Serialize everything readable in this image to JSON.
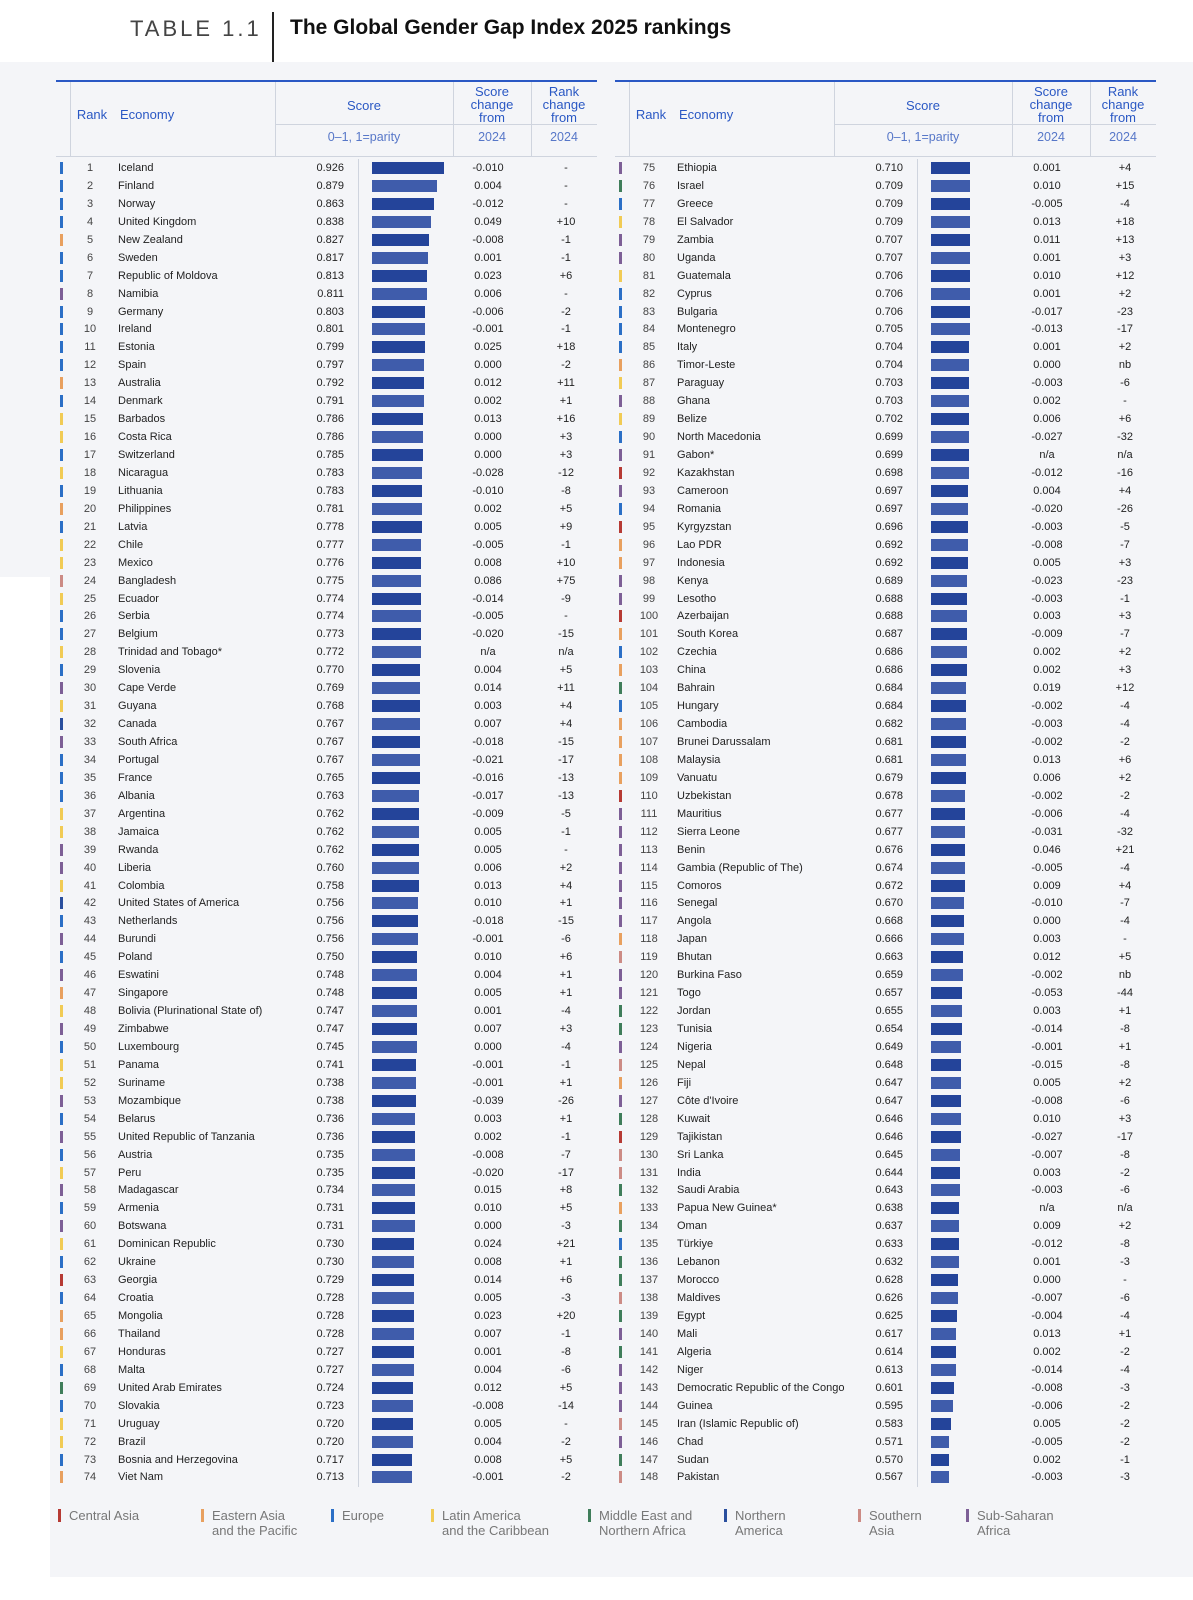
{
  "header": {
    "tag": "TABLE 1.1",
    "title": "The Global Gender Gap Index 2025 rankings"
  },
  "columns": {
    "rank": "Rank",
    "economy": "Economy",
    "score": "Score",
    "score_sub": "0–1, 1=parity",
    "score_change_l1": "Score",
    "score_change_l2": "change",
    "score_change_l3": "from",
    "score_change_sub": "2024",
    "rank_change_l1": "Rank",
    "rank_change_l2": "change",
    "rank_change_l3": "from",
    "rank_change_sub": "2024"
  },
  "region_colors": {
    "CA": "#b63a34",
    "EA": "#e8a05f",
    "EU": "#2b6fc6",
    "LA": "#f1cb55",
    "ME": "#3f7d5a",
    "NA": "#2a4f9e",
    "SA": "#cc8b85",
    "SS": "#7d5f96"
  },
  "bar_colors": {
    "bar": "#24449a",
    "bar_light": "#3f5cab"
  },
  "legend": [
    {
      "region": "CA",
      "line1": "Central Asia",
      "line2": ""
    },
    {
      "region": "EA",
      "line1": "Eastern Asia",
      "line2": "and the Pacific"
    },
    {
      "region": "EU",
      "line1": "Europe",
      "line2": ""
    },
    {
      "region": "LA",
      "line1": "Latin America",
      "line2": "and the Caribbean"
    },
    {
      "region": "ME",
      "line1": "Middle East and",
      "line2": "Northern Africa"
    },
    {
      "region": "NA",
      "line1": "Northern",
      "line2": "America"
    },
    {
      "region": "SA",
      "line1": "Southern",
      "line2": "Asia"
    },
    {
      "region": "SS",
      "line1": "Sub-Saharan",
      "line2": "Africa"
    }
  ],
  "rows": [
    [
      "1",
      "Iceland",
      "0.926",
      "-0.010",
      "-",
      "EU"
    ],
    [
      "2",
      "Finland",
      "0.879",
      "0.004",
      "-",
      "EU"
    ],
    [
      "3",
      "Norway",
      "0.863",
      "-0.012",
      "-",
      "EU"
    ],
    [
      "4",
      "United Kingdom",
      "0.838",
      "0.049",
      "+10",
      "EU"
    ],
    [
      "5",
      "New Zealand",
      "0.827",
      "-0.008",
      "-1",
      "EA"
    ],
    [
      "6",
      "Sweden",
      "0.817",
      "0.001",
      "-1",
      "EU"
    ],
    [
      "7",
      "Republic of Moldova",
      "0.813",
      "0.023",
      "+6",
      "EU"
    ],
    [
      "8",
      "Namibia",
      "0.811",
      "0.006",
      "-",
      "SS"
    ],
    [
      "9",
      "Germany",
      "0.803",
      "-0.006",
      "-2",
      "EU"
    ],
    [
      "10",
      "Ireland",
      "0.801",
      "-0.001",
      "-1",
      "EU"
    ],
    [
      "11",
      "Estonia",
      "0.799",
      "0.025",
      "+18",
      "EU"
    ],
    [
      "12",
      "Spain",
      "0.797",
      "0.000",
      "-2",
      "EU"
    ],
    [
      "13",
      "Australia",
      "0.792",
      "0.012",
      "+11",
      "EA"
    ],
    [
      "14",
      "Denmark",
      "0.791",
      "0.002",
      "+1",
      "EU"
    ],
    [
      "15",
      "Barbados",
      "0.786",
      "0.013",
      "+16",
      "LA"
    ],
    [
      "16",
      "Costa Rica",
      "0.786",
      "0.000",
      "+3",
      "LA"
    ],
    [
      "17",
      "Switzerland",
      "0.785",
      "0.000",
      "+3",
      "EU"
    ],
    [
      "18",
      "Nicaragua",
      "0.783",
      "-0.028",
      "-12",
      "LA"
    ],
    [
      "19",
      "Lithuania",
      "0.783",
      "-0.010",
      "-8",
      "EU"
    ],
    [
      "20",
      "Philippines",
      "0.781",
      "0.002",
      "+5",
      "EA"
    ],
    [
      "21",
      "Latvia",
      "0.778",
      "0.005",
      "+9",
      "EU"
    ],
    [
      "22",
      "Chile",
      "0.777",
      "-0.005",
      "-1",
      "LA"
    ],
    [
      "23",
      "Mexico",
      "0.776",
      "0.008",
      "+10",
      "LA"
    ],
    [
      "24",
      "Bangladesh",
      "0.775",
      "0.086",
      "+75",
      "SA"
    ],
    [
      "25",
      "Ecuador",
      "0.774",
      "-0.014",
      "-9",
      "LA"
    ],
    [
      "26",
      "Serbia",
      "0.774",
      "-0.005",
      "-",
      "EU"
    ],
    [
      "27",
      "Belgium",
      "0.773",
      "-0.020",
      "-15",
      "EU"
    ],
    [
      "28",
      "Trinidad and Tobago*",
      "0.772",
      "n/a",
      "n/a",
      "LA"
    ],
    [
      "29",
      "Slovenia",
      "0.770",
      "0.004",
      "+5",
      "EU"
    ],
    [
      "30",
      "Cape Verde",
      "0.769",
      "0.014",
      "+11",
      "SS"
    ],
    [
      "31",
      "Guyana",
      "0.768",
      "0.003",
      "+4",
      "LA"
    ],
    [
      "32",
      "Canada",
      "0.767",
      "0.007",
      "+4",
      "NA"
    ],
    [
      "33",
      "South Africa",
      "0.767",
      "-0.018",
      "-15",
      "SS"
    ],
    [
      "34",
      "Portugal",
      "0.767",
      "-0.021",
      "-17",
      "EU"
    ],
    [
      "35",
      "France",
      "0.765",
      "-0.016",
      "-13",
      "EU"
    ],
    [
      "36",
      "Albania",
      "0.763",
      "-0.017",
      "-13",
      "EU"
    ],
    [
      "37",
      "Argentina",
      "0.762",
      "-0.009",
      "-5",
      "LA"
    ],
    [
      "38",
      "Jamaica",
      "0.762",
      "0.005",
      "-1",
      "LA"
    ],
    [
      "39",
      "Rwanda",
      "0.762",
      "0.005",
      "-",
      "SS"
    ],
    [
      "40",
      "Liberia",
      "0.760",
      "0.006",
      "+2",
      "SS"
    ],
    [
      "41",
      "Colombia",
      "0.758",
      "0.013",
      "+4",
      "LA"
    ],
    [
      "42",
      "United States of America",
      "0.756",
      "0.010",
      "+1",
      "NA"
    ],
    [
      "43",
      "Netherlands",
      "0.756",
      "-0.018",
      "-15",
      "EU"
    ],
    [
      "44",
      "Burundi",
      "0.756",
      "-0.001",
      "-6",
      "SS"
    ],
    [
      "45",
      "Poland",
      "0.750",
      "0.010",
      "+6",
      "EU"
    ],
    [
      "46",
      "Eswatini",
      "0.748",
      "0.004",
      "+1",
      "SS"
    ],
    [
      "47",
      "Singapore",
      "0.748",
      "0.005",
      "+1",
      "EA"
    ],
    [
      "48",
      "Bolivia (Plurinational State of)",
      "0.747",
      "0.001",
      "-4",
      "LA"
    ],
    [
      "49",
      "Zimbabwe",
      "0.747",
      "0.007",
      "+3",
      "SS"
    ],
    [
      "50",
      "Luxembourg",
      "0.745",
      "0.000",
      "-4",
      "EU"
    ],
    [
      "51",
      "Panama",
      "0.741",
      "-0.001",
      "-1",
      "LA"
    ],
    [
      "52",
      "Suriname",
      "0.738",
      "-0.001",
      "+1",
      "LA"
    ],
    [
      "53",
      "Mozambique",
      "0.738",
      "-0.039",
      "-26",
      "SS"
    ],
    [
      "54",
      "Belarus",
      "0.736",
      "0.003",
      "+1",
      "EU"
    ],
    [
      "55",
      "United Republic of Tanzania",
      "0.736",
      "0.002",
      "-1",
      "SS"
    ],
    [
      "56",
      "Austria",
      "0.735",
      "-0.008",
      "-7",
      "EU"
    ],
    [
      "57",
      "Peru",
      "0.735",
      "-0.020",
      "-17",
      "LA"
    ],
    [
      "58",
      "Madagascar",
      "0.734",
      "0.015",
      "+8",
      "SS"
    ],
    [
      "59",
      "Armenia",
      "0.731",
      "0.010",
      "+5",
      "EU"
    ],
    [
      "60",
      "Botswana",
      "0.731",
      "0.000",
      "-3",
      "SS"
    ],
    [
      "61",
      "Dominican Republic",
      "0.730",
      "0.024",
      "+21",
      "LA"
    ],
    [
      "62",
      "Ukraine",
      "0.730",
      "0.008",
      "+1",
      "EU"
    ],
    [
      "63",
      "Georgia",
      "0.729",
      "0.014",
      "+6",
      "CA"
    ],
    [
      "64",
      "Croatia",
      "0.728",
      "0.005",
      "-3",
      "EU"
    ],
    [
      "65",
      "Mongolia",
      "0.728",
      "0.023",
      "+20",
      "EA"
    ],
    [
      "66",
      "Thailand",
      "0.728",
      "0.007",
      "-1",
      "EA"
    ],
    [
      "67",
      "Honduras",
      "0.727",
      "0.001",
      "-8",
      "LA"
    ],
    [
      "68",
      "Malta",
      "0.727",
      "0.004",
      "-6",
      "EU"
    ],
    [
      "69",
      "United Arab Emirates",
      "0.724",
      "0.012",
      "+5",
      "ME"
    ],
    [
      "70",
      "Slovakia",
      "0.723",
      "-0.008",
      "-14",
      "EU"
    ],
    [
      "71",
      "Uruguay",
      "0.720",
      "0.005",
      "-",
      "LA"
    ],
    [
      "72",
      "Brazil",
      "0.720",
      "0.004",
      "-2",
      "LA"
    ],
    [
      "73",
      "Bosnia and Herzegovina",
      "0.717",
      "0.008",
      "+5",
      "EU"
    ],
    [
      "74",
      "Viet Nam",
      "0.713",
      "-0.001",
      "-2",
      "EA"
    ],
    [
      "75",
      "Ethiopia",
      "0.710",
      "0.001",
      "+4",
      "SS"
    ],
    [
      "76",
      "Israel",
      "0.709",
      "0.010",
      "+15",
      "ME"
    ],
    [
      "77",
      "Greece",
      "0.709",
      "-0.005",
      "-4",
      "EU"
    ],
    [
      "78",
      "El Salvador",
      "0.709",
      "0.013",
      "+18",
      "LA"
    ],
    [
      "79",
      "Zambia",
      "0.707",
      "0.011",
      "+13",
      "SS"
    ],
    [
      "80",
      "Uganda",
      "0.707",
      "0.001",
      "+3",
      "SS"
    ],
    [
      "81",
      "Guatemala",
      "0.706",
      "0.010",
      "+12",
      "LA"
    ],
    [
      "82",
      "Cyprus",
      "0.706",
      "0.001",
      "+2",
      "EU"
    ],
    [
      "83",
      "Bulgaria",
      "0.706",
      "-0.017",
      "-23",
      "EU"
    ],
    [
      "84",
      "Montenegro",
      "0.705",
      "-0.013",
      "-17",
      "EU"
    ],
    [
      "85",
      "Italy",
      "0.704",
      "0.001",
      "+2",
      "EU"
    ],
    [
      "86",
      "Timor-Leste",
      "0.704",
      "0.000",
      "nb",
      "EA"
    ],
    [
      "87",
      "Paraguay",
      "0.703",
      "-0.003",
      "-6",
      "LA"
    ],
    [
      "88",
      "Ghana",
      "0.703",
      "0.002",
      "-",
      "SS"
    ],
    [
      "89",
      "Belize",
      "0.702",
      "0.006",
      "+6",
      "LA"
    ],
    [
      "90",
      "North Macedonia",
      "0.699",
      "-0.027",
      "-32",
      "EU"
    ],
    [
      "91",
      "Gabon*",
      "0.699",
      "n/a",
      "n/a",
      "SS"
    ],
    [
      "92",
      "Kazakhstan",
      "0.698",
      "-0.012",
      "-16",
      "CA"
    ],
    [
      "93",
      "Cameroon",
      "0.697",
      "0.004",
      "+4",
      "SS"
    ],
    [
      "94",
      "Romania",
      "0.697",
      "-0.020",
      "-26",
      "EU"
    ],
    [
      "95",
      "Kyrgyzstan",
      "0.696",
      "-0.003",
      "-5",
      "CA"
    ],
    [
      "96",
      "Lao PDR",
      "0.692",
      "-0.008",
      "-7",
      "EA"
    ],
    [
      "97",
      "Indonesia",
      "0.692",
      "0.005",
      "+3",
      "EA"
    ],
    [
      "98",
      "Kenya",
      "0.689",
      "-0.023",
      "-23",
      "SS"
    ],
    [
      "99",
      "Lesotho",
      "0.688",
      "-0.003",
      "-1",
      "SS"
    ],
    [
      "100",
      "Azerbaijan",
      "0.688",
      "0.003",
      "+3",
      "CA"
    ],
    [
      "101",
      "South Korea",
      "0.687",
      "-0.009",
      "-7",
      "EA"
    ],
    [
      "102",
      "Czechia",
      "0.686",
      "0.002",
      "+2",
      "EU"
    ],
    [
      "103",
      "China",
      "0.686",
      "0.002",
      "+3",
      "EA"
    ],
    [
      "104",
      "Bahrain",
      "0.684",
      "0.019",
      "+12",
      "ME"
    ],
    [
      "105",
      "Hungary",
      "0.684",
      "-0.002",
      "-4",
      "EU"
    ],
    [
      "106",
      "Cambodia",
      "0.682",
      "-0.003",
      "-4",
      "EA"
    ],
    [
      "107",
      "Brunei Darussalam",
      "0.681",
      "-0.002",
      "-2",
      "EA"
    ],
    [
      "108",
      "Malaysia",
      "0.681",
      "0.013",
      "+6",
      "EA"
    ],
    [
      "109",
      "Vanuatu",
      "0.679",
      "0.006",
      "+2",
      "EA"
    ],
    [
      "110",
      "Uzbekistan",
      "0.678",
      "-0.002",
      "-2",
      "CA"
    ],
    [
      "111",
      "Mauritius",
      "0.677",
      "-0.006",
      "-4",
      "SS"
    ],
    [
      "112",
      "Sierra Leone",
      "0.677",
      "-0.031",
      "-32",
      "SS"
    ],
    [
      "113",
      "Benin",
      "0.676",
      "0.046",
      "+21",
      "SS"
    ],
    [
      "114",
      "Gambia (Republic of The)",
      "0.674",
      "-0.005",
      "-4",
      "SS"
    ],
    [
      "115",
      "Comoros",
      "0.672",
      "0.009",
      "+4",
      "SS"
    ],
    [
      "116",
      "Senegal",
      "0.670",
      "-0.010",
      "-7",
      "SS"
    ],
    [
      "117",
      "Angola",
      "0.668",
      "0.000",
      "-4",
      "SS"
    ],
    [
      "118",
      "Japan",
      "0.666",
      "0.003",
      "-",
      "EA"
    ],
    [
      "119",
      "Bhutan",
      "0.663",
      "0.012",
      "+5",
      "SA"
    ],
    [
      "120",
      "Burkina Faso",
      "0.659",
      "-0.002",
      "nb",
      "SS"
    ],
    [
      "121",
      "Togo",
      "0.657",
      "-0.053",
      "-44",
      "SS"
    ],
    [
      "122",
      "Jordan",
      "0.655",
      "0.003",
      "+1",
      "ME"
    ],
    [
      "123",
      "Tunisia",
      "0.654",
      "-0.014",
      "-8",
      "ME"
    ],
    [
      "124",
      "Nigeria",
      "0.649",
      "-0.001",
      "+1",
      "SS"
    ],
    [
      "125",
      "Nepal",
      "0.648",
      "-0.015",
      "-8",
      "SA"
    ],
    [
      "126",
      "Fiji",
      "0.647",
      "0.005",
      "+2",
      "EA"
    ],
    [
      "127",
      "Côte d'Ivoire",
      "0.647",
      "-0.008",
      "-6",
      "SS"
    ],
    [
      "128",
      "Kuwait",
      "0.646",
      "0.010",
      "+3",
      "ME"
    ],
    [
      "129",
      "Tajikistan",
      "0.646",
      "-0.027",
      "-17",
      "CA"
    ],
    [
      "130",
      "Sri Lanka",
      "0.645",
      "-0.007",
      "-8",
      "SA"
    ],
    [
      "131",
      "India",
      "0.644",
      "0.003",
      "-2",
      "SA"
    ],
    [
      "132",
      "Saudi Arabia",
      "0.643",
      "-0.003",
      "-6",
      "ME"
    ],
    [
      "133",
      "Papua New Guinea*",
      "0.638",
      "n/a",
      "n/a",
      "EA"
    ],
    [
      "134",
      "Oman",
      "0.637",
      "0.009",
      "+2",
      "ME"
    ],
    [
      "135",
      "Türkiye",
      "0.633",
      "-0.012",
      "-8",
      "EU"
    ],
    [
      "136",
      "Lebanon",
      "0.632",
      "0.001",
      "-3",
      "ME"
    ],
    [
      "137",
      "Morocco",
      "0.628",
      "0.000",
      "-",
      "ME"
    ],
    [
      "138",
      "Maldives",
      "0.626",
      "-0.007",
      "-6",
      "SA"
    ],
    [
      "139",
      "Egypt",
      "0.625",
      "-0.004",
      "-4",
      "ME"
    ],
    [
      "140",
      "Mali",
      "0.617",
      "0.013",
      "+1",
      "SS"
    ],
    [
      "141",
      "Algeria",
      "0.614",
      "0.002",
      "-2",
      "ME"
    ],
    [
      "142",
      "Niger",
      "0.613",
      "-0.014",
      "-4",
      "SS"
    ],
    [
      "143",
      "Democratic Republic of the Congo",
      "0.601",
      "-0.008",
      "-3",
      "SS"
    ],
    [
      "144",
      "Guinea",
      "0.595",
      "-0.006",
      "-2",
      "SS"
    ],
    [
      "145",
      "Iran (Islamic Republic of)",
      "0.583",
      "0.005",
      "-2",
      "SA"
    ],
    [
      "146",
      "Chad",
      "0.571",
      "-0.005",
      "-2",
      "SS"
    ],
    [
      "147",
      "Sudan",
      "0.570",
      "0.002",
      "-1",
      "ME"
    ],
    [
      "148",
      "Pakistan",
      "0.567",
      "-0.003",
      "-3",
      "SA"
    ]
  ]
}
